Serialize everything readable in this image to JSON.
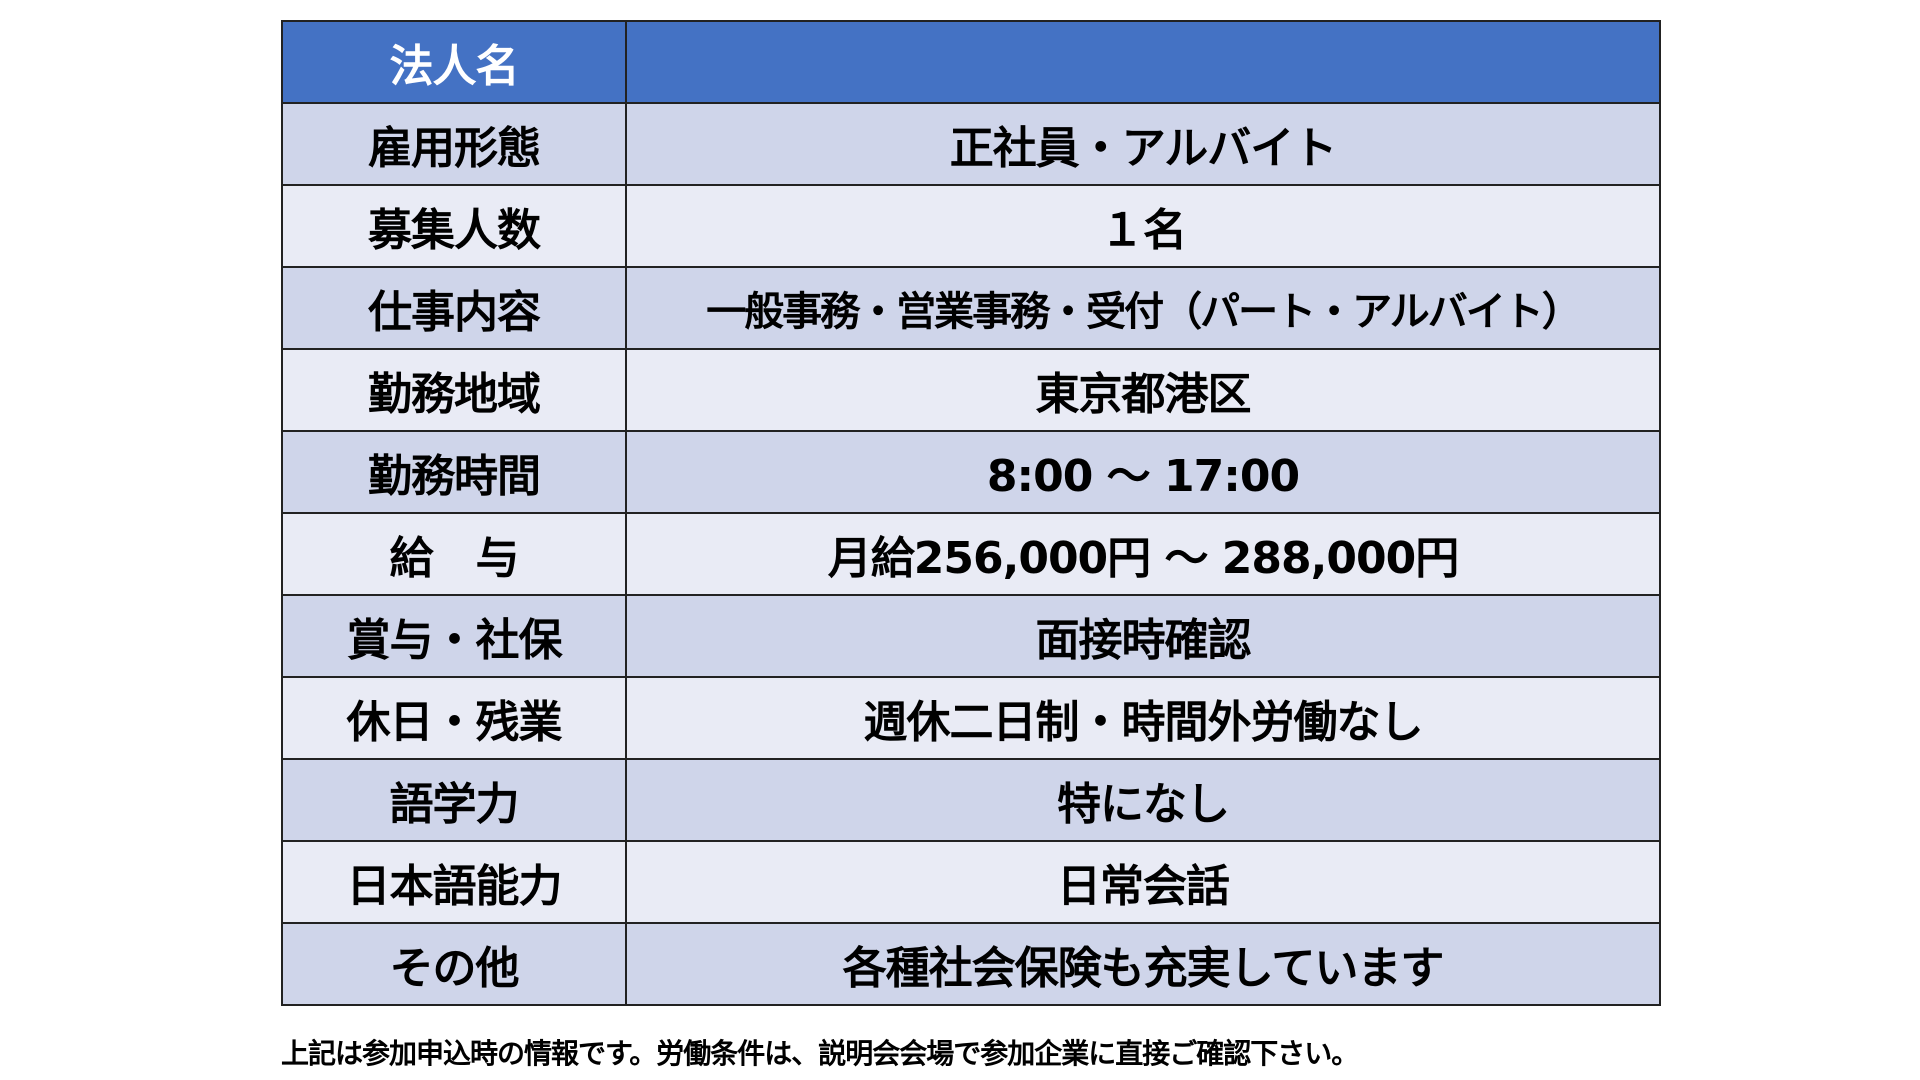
{
  "header": {
    "label": "法人名",
    "value": ""
  },
  "rows": [
    {
      "label": "雇用形態",
      "value": "正社員・アルバイト"
    },
    {
      "label": "募集人数",
      "value": "１名"
    },
    {
      "label": "仕事内容",
      "value": "一般事務・営業事務・受付（パート・アルバイト）"
    },
    {
      "label": "勤務地域",
      "value": "東京都港区"
    },
    {
      "label": "勤務時間",
      "value": "8:00 ～ 17:00"
    },
    {
      "label": "給　与",
      "value": "月給256,000円 ～ 288,000円"
    },
    {
      "label": "賞与・社保",
      "value": "面接時確認"
    },
    {
      "label": "休日・残業",
      "value": "週休二日制・時間外労働なし"
    },
    {
      "label": "語学力",
      "value": "特になし"
    },
    {
      "label": "日本語能力",
      "value": "日常会話"
    },
    {
      "label": "その他",
      "value": "各種社会保険も充実しています"
    }
  ],
  "footnote": "上記は参加申込時の情報です。労働条件は、説明会会場で参加企業に直接ご確認下さい。",
  "colors": {
    "header": "#4472C4",
    "row_dark": "#CFD5EA",
    "row_light": "#E9EBF5"
  }
}
